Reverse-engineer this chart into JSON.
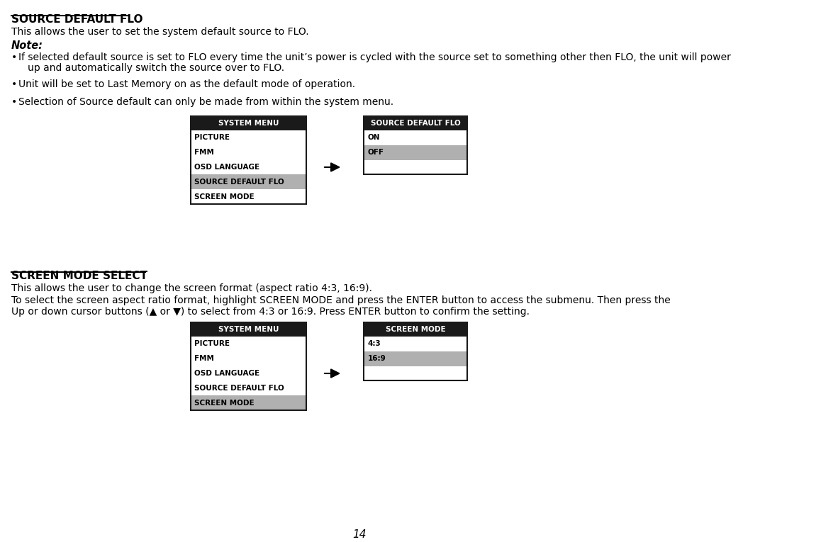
{
  "bg_color": "#ffffff",
  "page_number": "14",
  "section1": {
    "title": "SOURCE DEFAULT FLO",
    "desc": "This allows the user to set the system default source to FLO.",
    "note_label": "Note:",
    "bullet1_line1": "If selected default source is set to FLO every time the unit’s power is cycled with the source set to something other then FLO, the unit will power",
    "bullet1_line2": "   up and automatically switch the source over to FLO.",
    "bullet2": "Unit will be set to Last Memory on as the default mode of operation.",
    "bullet3": "Selection of Source default can only be made from within the system menu.",
    "menu1": {
      "title": "SYSTEM MENU",
      "title_bg": "#1a1a1a",
      "title_fg": "#ffffff",
      "items": [
        "PICTURE",
        "FMM",
        "OSD LANGUAGE",
        "SOURCE DEFAULT FLO",
        "SCREEN MODE"
      ],
      "highlighted": "SOURCE DEFAULT FLO",
      "highlight_bg": "#b0b0b0"
    },
    "menu2": {
      "title": "SOURCE DEFAULT FLO",
      "title_bg": "#1a1a1a",
      "title_fg": "#ffffff",
      "items": [
        "ON",
        "OFF",
        ""
      ],
      "highlighted": "OFF",
      "highlight_bg": "#b0b0b0"
    }
  },
  "section2": {
    "title": "SCREEN MODE SELECT",
    "desc1": "This allows the user to change the screen format (aspect ratio 4:3, 16:9).",
    "desc2_line1": "To select the screen aspect ratio format, highlight SCREEN MODE and press the ENTER button to access the submenu. Then press the",
    "desc2_line2": "Up or down cursor buttons (▲ or ▼) to select from 4:3 or 16:9. Press ENTER button to confirm the setting.",
    "menu1": {
      "title": "SYSTEM MENU",
      "title_bg": "#1a1a1a",
      "title_fg": "#ffffff",
      "items": [
        "PICTURE",
        "FMM",
        "OSD LANGUAGE",
        "SOURCE DEFAULT FLO",
        "SCREEN MODE"
      ],
      "highlighted": "SCREEN MODE",
      "highlight_bg": "#b0b0b0"
    },
    "menu2": {
      "title": "SCREEN MODE",
      "title_bg": "#1a1a1a",
      "title_fg": "#ffffff",
      "items": [
        "4:3",
        "16:9",
        ""
      ],
      "highlighted": "16:9",
      "highlight_bg": "#b0b0b0"
    }
  }
}
